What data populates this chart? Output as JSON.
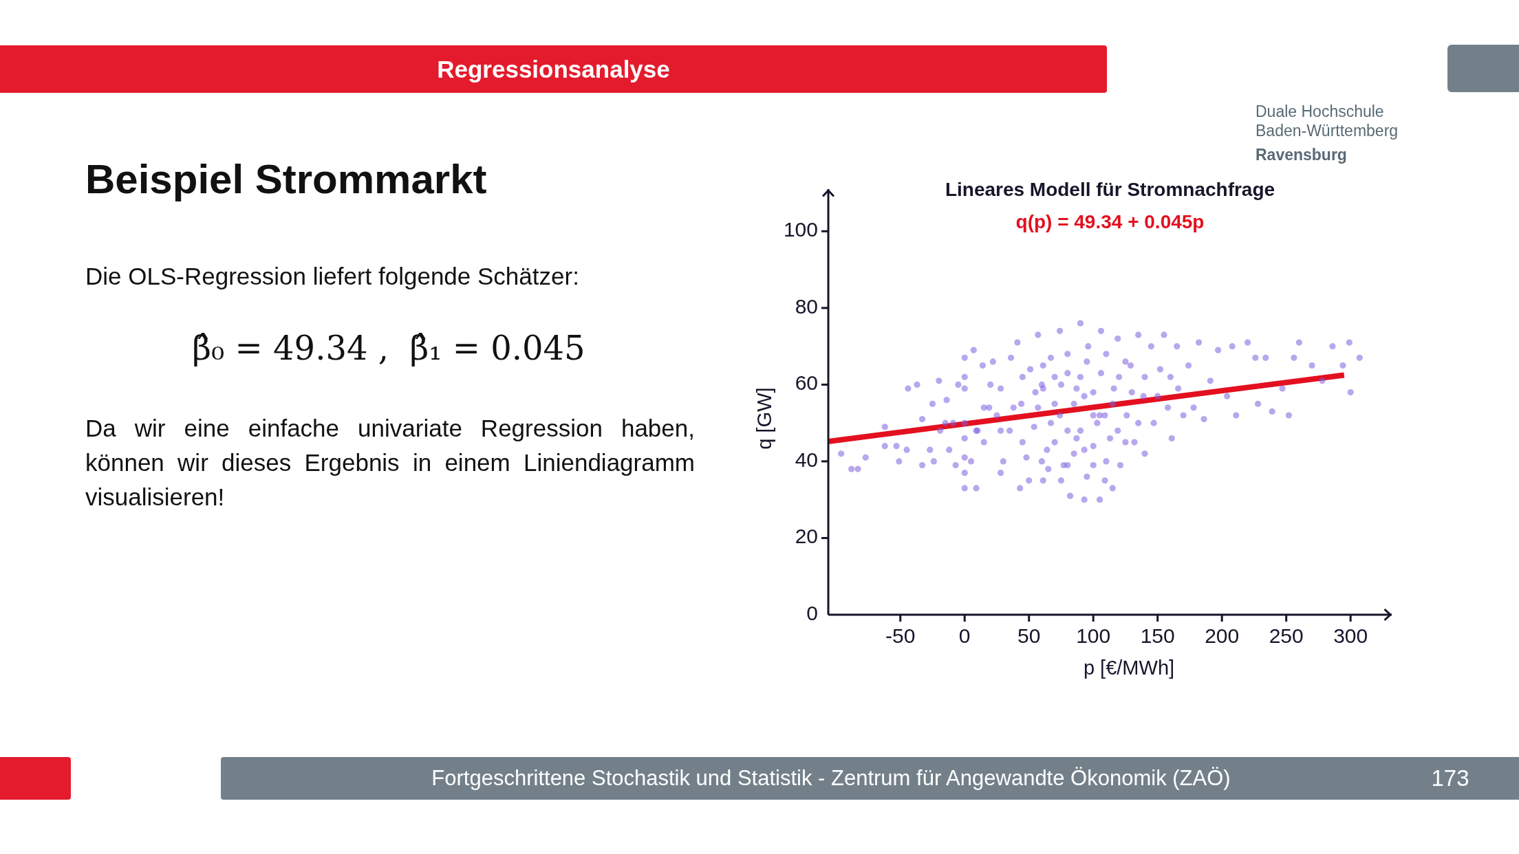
{
  "chart_data": [
    {
      "type": "other",
      "title": "Beispiel Strommarkt",
      "annotations": [
        "Regressionsanalyse",
        "Duale Hochschule Baden-Württemberg",
        "Ravensburg",
        "Die OLS-Regression liefert folgende Schätzer:",
        "β̂₀ = 49.34 ,  β̂₁ = 0.045",
        "Da wir eine einfache univariate Regression haben, können wir dieses Ergebnis in einem Liniendiagramm visualisieren!",
        "Fortgeschrittene Stochastik und Statistik - Zentrum für Angewandte Ökonomik (ZAÖ)",
        "173"
      ]
    },
    {
      "type": "scatter",
      "title": "Lineares Modell für Stromnachfrage",
      "xlabel": "p [€/MWh]",
      "ylabel": "q [GW]",
      "xlim": [
        -106,
        332
      ],
      "ylim": [
        0,
        111
      ],
      "xticks": [
        -50,
        0,
        50,
        100,
        150,
        200,
        250,
        300
      ],
      "yticks": [
        0,
        20,
        40,
        60,
        80,
        100
      ],
      "marker": "circle",
      "series": [
        {
          "type": "scatter",
          "color": "#7b5fe0",
          "x": [
            -96,
            -88,
            -83,
            -77,
            -62,
            -62,
            -53,
            -51,
            -44,
            -37,
            -45,
            -33,
            -33,
            -27,
            -24,
            -20,
            -19,
            -14,
            -12,
            -9,
            -7,
            -5,
            0,
            0,
            0,
            0,
            0,
            7,
            9,
            14,
            22,
            19,
            15,
            28,
            28,
            35,
            36,
            41,
            43,
            44,
            48,
            51,
            54,
            57,
            61,
            61,
            64,
            67,
            74,
            74,
            77,
            80,
            82,
            87,
            90,
            93,
            93,
            96,
            100,
            103,
            106,
            106,
            109,
            113,
            116,
            119,
            121,
            126,
            129,
            132,
            135,
            139,
            140,
            145,
            147,
            152,
            155,
            158,
            161,
            165,
            166,
            174,
            178,
            182,
            186,
            191,
            197,
            204,
            208,
            211,
            220,
            226,
            228,
            234,
            239,
            247,
            252,
            256,
            260,
            270,
            278,
            286,
            294,
            299,
            300,
            307,
            57,
            67,
            80,
            87,
            93,
            100,
            109,
            80,
            61,
            119,
            38,
            28,
            15,
            9,
            5,
            60,
            60,
            70,
            70,
            70,
            75,
            80,
            85,
            85,
            90,
            90,
            95,
            95,
            100,
            100,
            105,
            110,
            110,
            115,
            120,
            125,
            130,
            135,
            140,
            45,
            45,
            50,
            55,
            65,
            75,
            105,
            115,
            125,
            150,
            160,
            170,
            30,
            20,
            10,
            0,
            0,
            0,
            25,
            -15,
            -25
          ],
          "values": [
            42,
            38,
            38,
            41,
            49,
            44,
            44,
            40,
            59,
            60,
            43,
            51,
            39,
            43,
            40,
            61,
            48,
            56,
            43,
            50,
            39,
            60,
            67,
            59,
            50,
            41,
            33,
            69,
            33,
            65,
            66,
            54,
            45,
            37,
            59,
            48,
            67,
            71,
            33,
            55,
            41,
            64,
            49,
            73,
            35,
            59,
            43,
            67,
            74,
            52,
            39,
            63,
            31,
            46,
            76,
            30,
            57,
            70,
            39,
            50,
            74,
            63,
            35,
            46,
            59,
            72,
            39,
            52,
            65,
            45,
            73,
            57,
            42,
            70,
            50,
            64,
            73,
            54,
            46,
            70,
            59,
            65,
            54,
            71,
            51,
            61,
            69,
            57,
            70,
            52,
            71,
            67,
            55,
            67,
            53,
            59,
            52,
            67,
            71,
            65,
            61,
            70,
            65,
            71,
            58,
            67,
            54,
            50,
            48,
            59,
            43,
            52,
            52,
            39,
            65,
            48,
            54,
            48,
            54,
            48,
            40,
            40,
            60,
            45,
            55,
            62,
            35,
            68,
            42,
            55,
            48,
            62,
            36,
            66,
            44,
            58,
            52,
            40,
            68,
            55,
            62,
            45,
            58,
            50,
            62,
            45,
            62,
            35,
            58,
            38,
            60,
            30,
            33,
            66,
            57,
            62,
            52,
            40,
            60,
            48,
            46,
            62,
            37,
            52,
            50,
            55
          ]
        },
        {
          "type": "line",
          "name": "q(p) = 49.34 + 0.045p",
          "color": "#e3101f",
          "marker": "none",
          "x": [
            -106,
            295
          ],
          "values": [
            45.2,
            62.5
          ]
        }
      ]
    }
  ]
}
